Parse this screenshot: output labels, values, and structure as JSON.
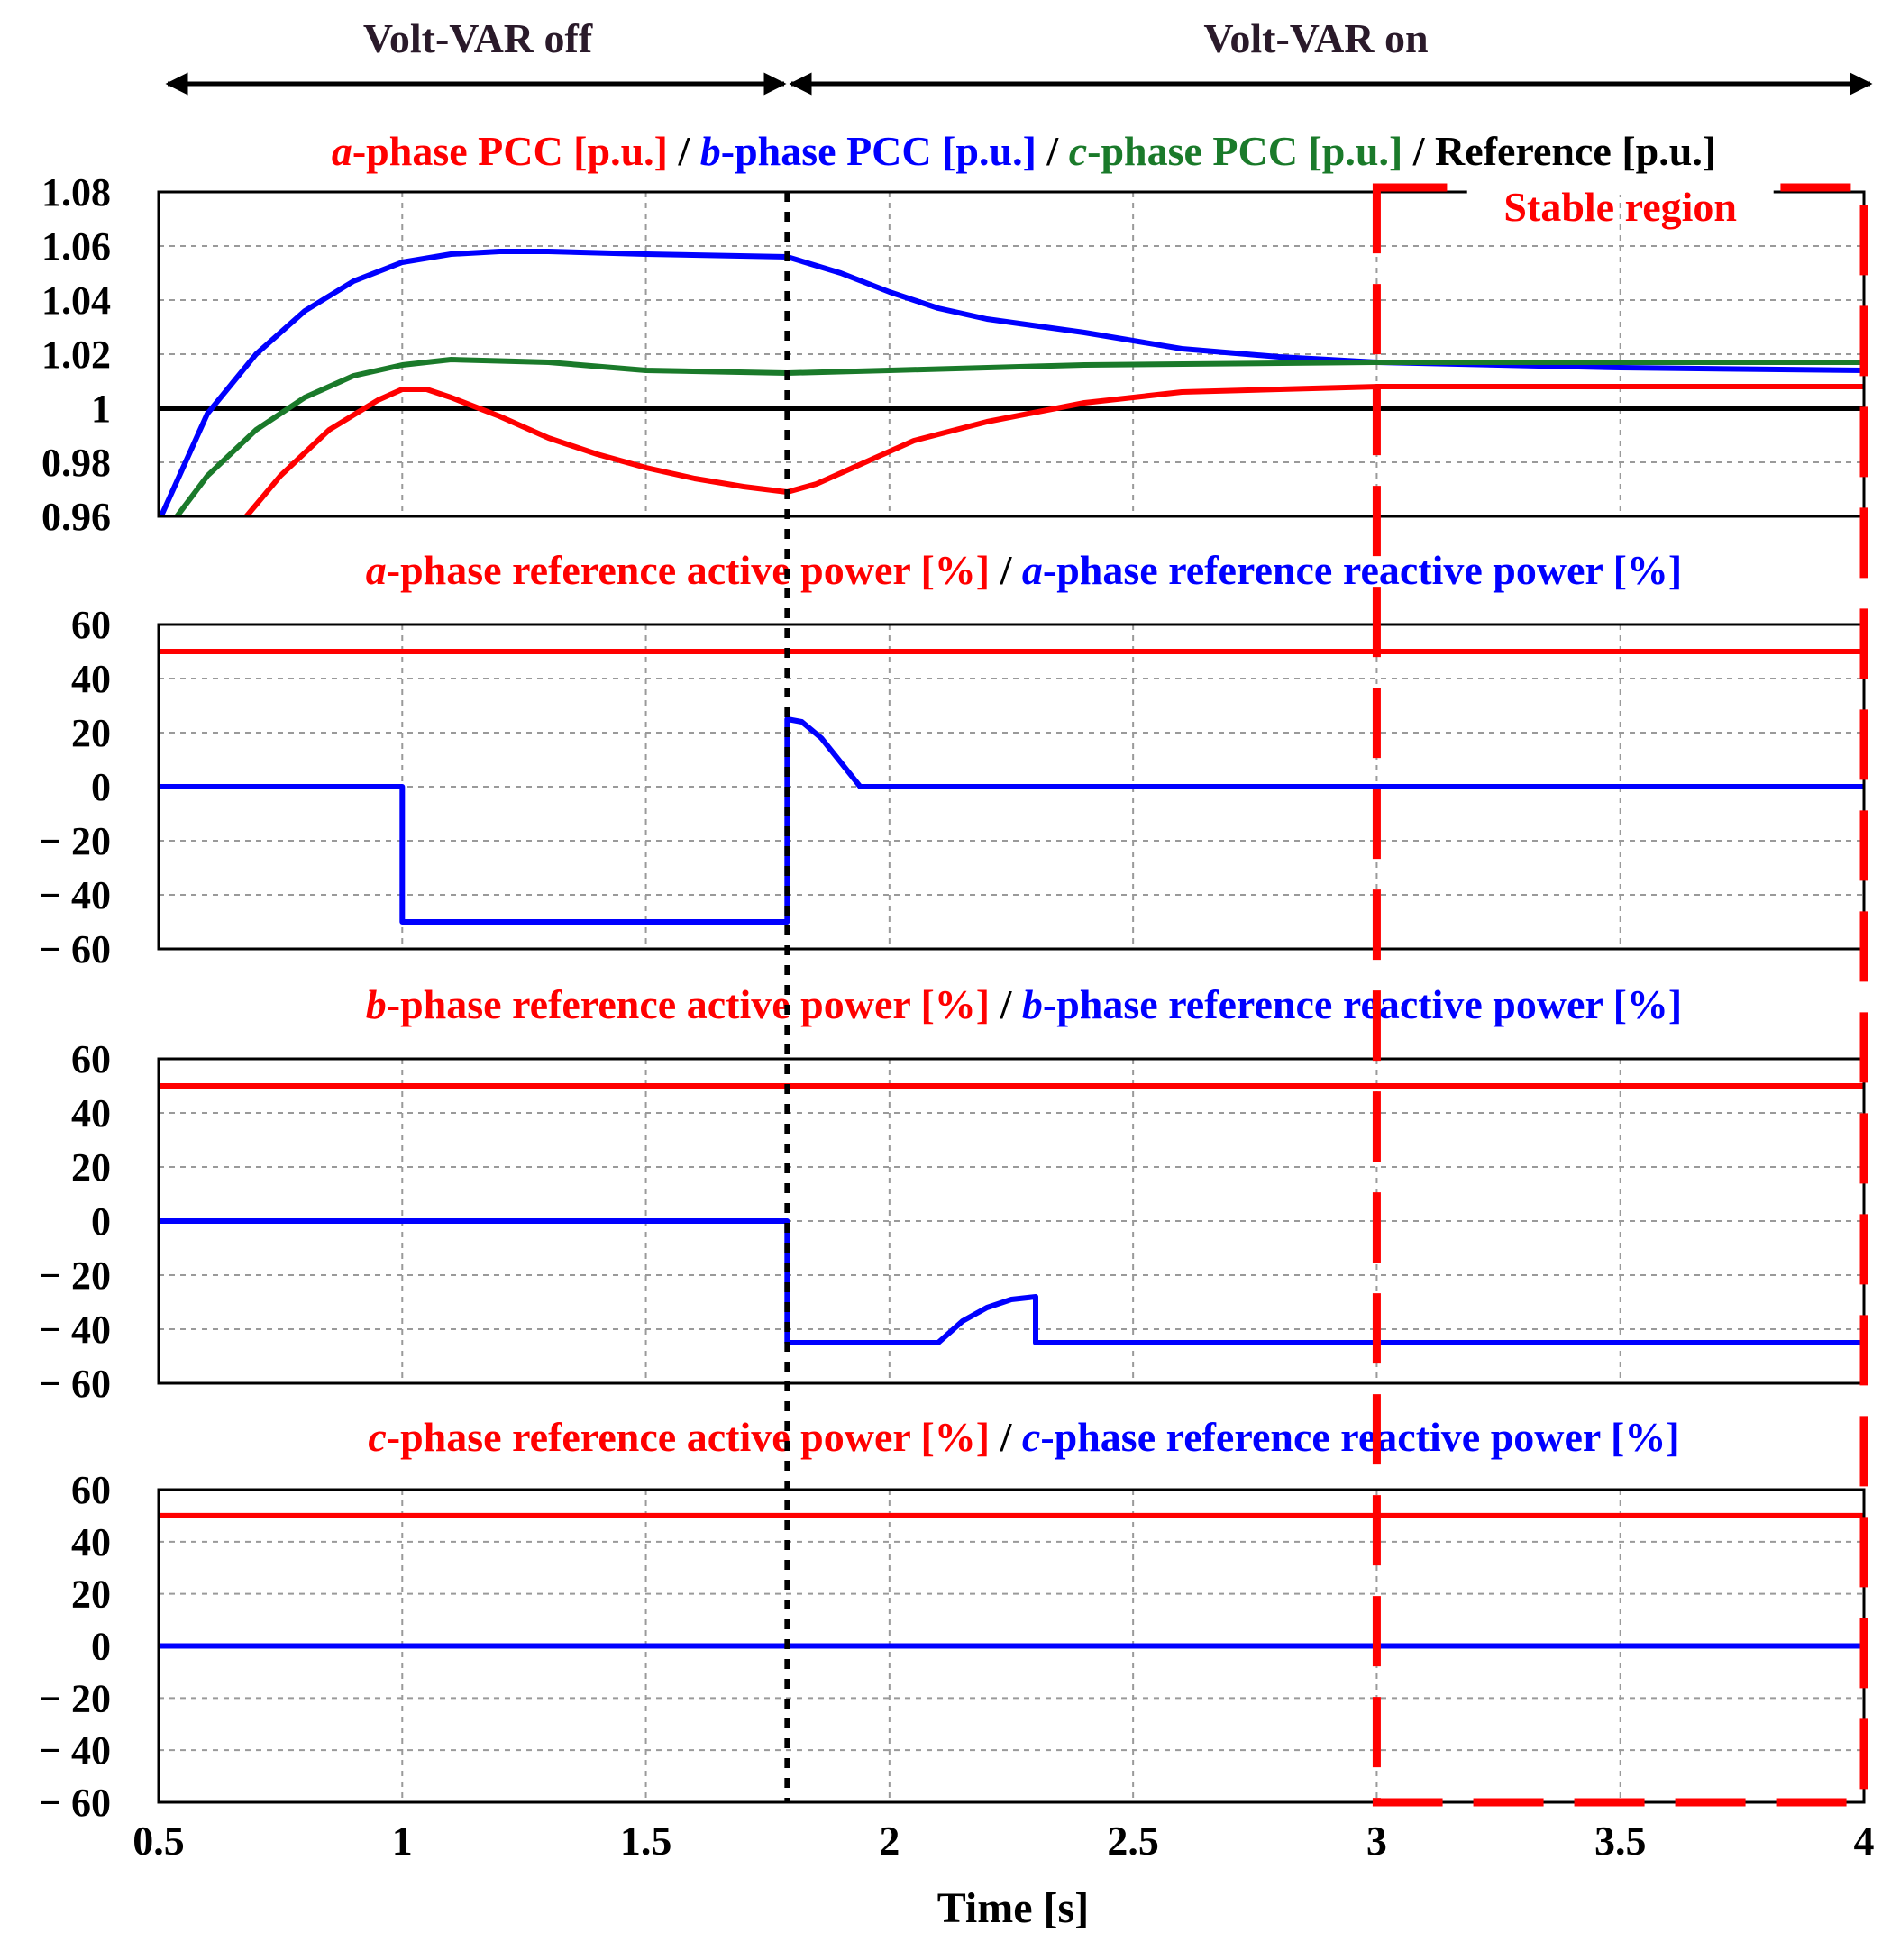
{
  "figure": {
    "xlabel": "Time [s]",
    "xlim": [
      0.5,
      4
    ],
    "x_ticks": [
      0.5,
      1,
      1.5,
      2,
      2.5,
      3,
      3.5,
      4
    ],
    "x_tick_labels": [
      "0.5",
      "1",
      "1.5",
      "2",
      "2.5",
      "3",
      "3.5",
      "4"
    ],
    "switch_time": 1.79,
    "header": {
      "off_label": "Volt-VAR off",
      "on_label": "Volt-VAR on",
      "off_range": [
        0.5,
        1.79
      ],
      "on_range": [
        1.79,
        4
      ]
    },
    "stable_region": {
      "label": "Stable region",
      "x_range": [
        3,
        4
      ]
    },
    "colors": {
      "red": "#ff0000",
      "blue": "#0000ff",
      "green": "#1a7a2a",
      "black": "#000000",
      "grid": "#9a9a9a",
      "header_text": "#2a1a2a"
    }
  },
  "chart_data": [
    {
      "type": "line",
      "title_parts": [
        {
          "text": "a",
          "italic": true,
          "color": "#ff0000"
        },
        {
          "text": "-phase PCC [p.u.]",
          "italic": false,
          "color": "#ff0000"
        },
        {
          "text": " / ",
          "italic": false,
          "color": "#000000"
        },
        {
          "text": "b",
          "italic": true,
          "color": "#0000ff"
        },
        {
          "text": "-phase PCC [p.u.]",
          "italic": false,
          "color": "#0000ff"
        },
        {
          "text": " / ",
          "italic": false,
          "color": "#000000"
        },
        {
          "text": "c",
          "italic": true,
          "color": "#1a7a2a"
        },
        {
          "text": "-phase PCC [p.u.]",
          "italic": false,
          "color": "#1a7a2a"
        },
        {
          "text": " / Reference [p.u.]",
          "italic": false,
          "color": "#000000"
        }
      ],
      "ylim": [
        0.96,
        1.08
      ],
      "y_ticks": [
        0.96,
        0.98,
        1,
        1.02,
        1.04,
        1.06,
        1.08
      ],
      "y_tick_labels": [
        "0.96",
        "0.98",
        "1",
        "1.02",
        "1.04",
        "1.06",
        "1.08"
      ],
      "series": [
        {
          "color": "#000000",
          "x": [
            0.5,
            4
          ],
          "y": [
            1.0,
            1.0
          ]
        },
        {
          "color": "#0000ff",
          "x": [
            0.5,
            0.6,
            0.7,
            0.8,
            0.9,
            1.0,
            1.1,
            1.2,
            1.3,
            1.5,
            1.79,
            1.9,
            2.0,
            2.1,
            2.2,
            2.4,
            2.6,
            2.8,
            3.0,
            3.5,
            4.0
          ],
          "y": [
            0.958,
            0.998,
            1.02,
            1.036,
            1.047,
            1.054,
            1.057,
            1.058,
            1.058,
            1.057,
            1.056,
            1.05,
            1.043,
            1.037,
            1.033,
            1.028,
            1.022,
            1.019,
            1.017,
            1.015,
            1.014
          ]
        },
        {
          "color": "#1a7a2a",
          "x": [
            0.5,
            0.6,
            0.7,
            0.8,
            0.9,
            1.0,
            1.1,
            1.3,
            1.5,
            1.79,
            2.0,
            2.4,
            3.0,
            4.0
          ],
          "y": [
            0.951,
            0.975,
            0.992,
            1.004,
            1.012,
            1.016,
            1.018,
            1.017,
            1.014,
            1.013,
            1.014,
            1.016,
            1.017,
            1.017
          ]
        },
        {
          "color": "#ff0000",
          "x": [
            0.68,
            0.75,
            0.85,
            0.95,
            1.0,
            1.05,
            1.1,
            1.2,
            1.3,
            1.4,
            1.5,
            1.6,
            1.7,
            1.79,
            1.85,
            1.95,
            2.05,
            2.2,
            2.4,
            2.6,
            3.0,
            3.5,
            4.0
          ],
          "y": [
            0.96,
            0.975,
            0.992,
            1.003,
            1.007,
            1.007,
            1.004,
            0.997,
            0.989,
            0.983,
            0.978,
            0.974,
            0.971,
            0.969,
            0.972,
            0.98,
            0.988,
            0.995,
            1.002,
            1.006,
            1.008,
            1.008,
            1.008
          ]
        }
      ]
    },
    {
      "type": "line",
      "title_parts": [
        {
          "text": "a",
          "italic": true,
          "color": "#ff0000"
        },
        {
          "text": "-phase reference active power [%]",
          "italic": false,
          "color": "#ff0000"
        },
        {
          "text": " / ",
          "italic": false,
          "color": "#000000"
        },
        {
          "text": "a",
          "italic": true,
          "color": "#0000ff"
        },
        {
          "text": "-phase reference reactive power [%]",
          "italic": false,
          "color": "#0000ff"
        }
      ],
      "ylim": [
        -60,
        60
      ],
      "y_ticks": [
        -60,
        -40,
        -20,
        0,
        20,
        40,
        60
      ],
      "y_tick_labels": [
        "− 60",
        "− 40",
        "− 20",
        "0",
        "20",
        "40",
        "60"
      ],
      "series": [
        {
          "color": "#ff0000",
          "x": [
            0.5,
            4
          ],
          "y": [
            50,
            50
          ]
        },
        {
          "color": "#0000ff",
          "x": [
            0.5,
            1.0,
            1.0,
            1.79,
            1.79,
            1.82,
            1.86,
            1.9,
            1.94,
            2.0,
            4.0
          ],
          "y": [
            0,
            0,
            -50,
            -50,
            25,
            24,
            18,
            9,
            0,
            0,
            0
          ]
        }
      ]
    },
    {
      "type": "line",
      "title_parts": [
        {
          "text": "b",
          "italic": true,
          "color": "#ff0000"
        },
        {
          "text": "-phase reference active power [%]",
          "italic": false,
          "color": "#ff0000"
        },
        {
          "text": " / ",
          "italic": false,
          "color": "#000000"
        },
        {
          "text": "b",
          "italic": true,
          "color": "#0000ff"
        },
        {
          "text": "-phase reference reactive power [%]",
          "italic": false,
          "color": "#0000ff"
        }
      ],
      "ylim": [
        -60,
        60
      ],
      "y_ticks": [
        -60,
        -40,
        -20,
        0,
        20,
        40,
        60
      ],
      "y_tick_labels": [
        "− 60",
        "− 40",
        "− 20",
        "0",
        "20",
        "40",
        "60"
      ],
      "series": [
        {
          "color": "#ff0000",
          "x": [
            0.5,
            4
          ],
          "y": [
            50,
            50
          ]
        },
        {
          "color": "#0000ff",
          "x": [
            0.5,
            1.79,
            1.79,
            2.1,
            2.15,
            2.2,
            2.25,
            2.3,
            2.3,
            4.0
          ],
          "y": [
            0,
            0,
            -45,
            -45,
            -37,
            -32,
            -29,
            -28,
            -45,
            -45
          ]
        }
      ]
    },
    {
      "type": "line",
      "title_parts": [
        {
          "text": "c",
          "italic": true,
          "color": "#ff0000"
        },
        {
          "text": "-phase reference active power [%]",
          "italic": false,
          "color": "#ff0000"
        },
        {
          "text": " / ",
          "italic": false,
          "color": "#000000"
        },
        {
          "text": "c",
          "italic": true,
          "color": "#0000ff"
        },
        {
          "text": "-phase reference reactive power [%]",
          "italic": false,
          "color": "#0000ff"
        }
      ],
      "ylim": [
        -60,
        60
      ],
      "y_ticks": [
        -60,
        -40,
        -20,
        0,
        20,
        40,
        60
      ],
      "y_tick_labels": [
        "− 60",
        "− 40",
        "− 20",
        "0",
        "20",
        "40",
        "60"
      ],
      "series": [
        {
          "color": "#ff0000",
          "x": [
            0.5,
            4
          ],
          "y": [
            50,
            50
          ]
        },
        {
          "color": "#0000ff",
          "x": [
            0.5,
            4
          ],
          "y": [
            0,
            0
          ]
        }
      ]
    }
  ]
}
